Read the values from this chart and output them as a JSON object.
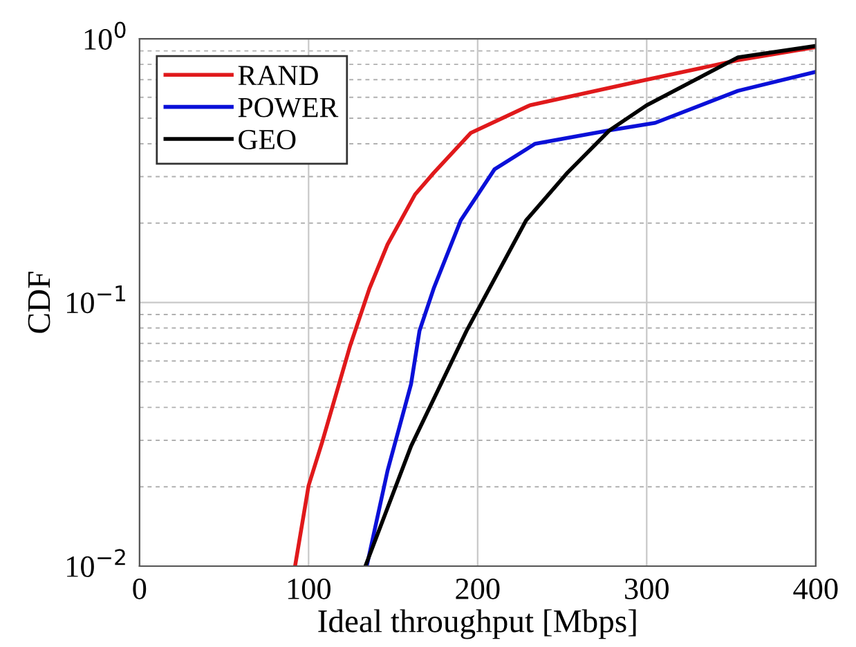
{
  "chart_data": {
    "type": "line",
    "xlabel": "Ideal throughput [Mbps]",
    "ylabel": "CDF",
    "log": "y",
    "grid": true,
    "legend": "top left",
    "line_style": "solid",
    "marker": "none",
    "xlim": [
      0,
      400
    ],
    "xticks": [
      0,
      100,
      200,
      300,
      400
    ],
    "ylim": [
      0.01,
      1
    ],
    "yticks": [
      {
        "value": 0.01,
        "label": "10$^{−2}$"
      },
      {
        "value": 0.1,
        "label": "10$^{−1}$"
      },
      {
        "value": 1,
        "label": "10$^{0}$"
      }
    ],
    "series": [
      {
        "name": "RAND",
        "color": "#e0191b",
        "x": [
          92,
          100,
          108,
          124.6,
          136,
          146.7,
          163,
          174,
          196,
          231,
          300,
          354,
          400
        ],
        "values": [
          0.01,
          0.0202,
          0.0295,
          0.0686,
          0.113,
          0.166,
          0.257,
          0.31,
          0.44,
          0.56,
          0.7,
          0.83,
          0.93
        ]
      },
      {
        "name": "POWER",
        "color": "#0a10d8",
        "x": [
          134.4,
          146.7,
          160.6,
          165.6,
          174,
          190,
          210,
          234,
          278,
          305,
          354,
          400
        ],
        "values": [
          0.01,
          0.023,
          0.049,
          0.078,
          0.113,
          0.205,
          0.32,
          0.4,
          0.45,
          0.48,
          0.635,
          0.75
        ]
      },
      {
        "name": "GEO",
        "color": "#000000",
        "x": [
          133.6,
          160.6,
          193.4,
          228.7,
          253,
          278,
          300,
          354,
          400
        ],
        "values": [
          0.01,
          0.0285,
          0.078,
          0.205,
          0.31,
          0.45,
          0.56,
          0.85,
          0.94
        ]
      }
    ]
  }
}
